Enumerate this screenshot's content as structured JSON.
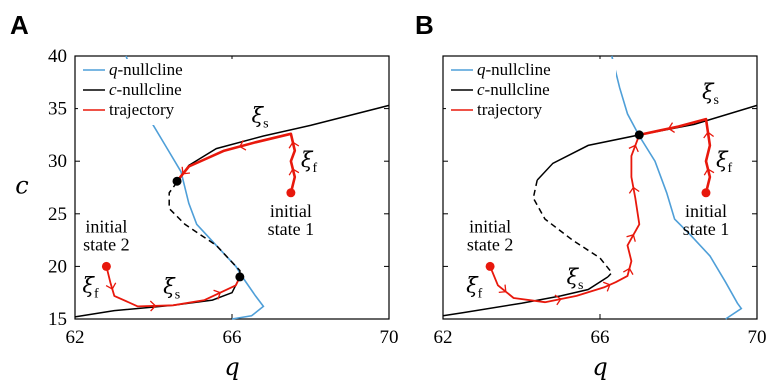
{
  "chart_data": [
    {
      "panel": "A",
      "type": "line",
      "xlabel": "q",
      "ylabel": "c",
      "xlim": [
        62,
        70
      ],
      "ylim": [
        15,
        40
      ],
      "xticks": [
        "62",
        "66",
        "70"
      ],
      "yticks": [
        "15",
        "20",
        "25",
        "30",
        "35",
        "40"
      ],
      "legend": {
        "position": "top-left",
        "entries": [
          {
            "prefix": "q",
            "text": "-nullcline",
            "color": "#4f9fd8"
          },
          {
            "prefix": "c",
            "text": "-nullcline",
            "color": "#000000"
          },
          {
            "prefix": "",
            "text": "trajectory",
            "color": "#e8180c"
          }
        ]
      },
      "q_nullcline": [
        [
          63.3,
          40
        ],
        [
          63.6,
          37
        ],
        [
          63.9,
          34
        ],
        [
          64.3,
          31.5
        ],
        [
          64.7,
          29
        ],
        [
          64.9,
          26
        ],
        [
          65.1,
          24
        ],
        [
          65.6,
          22
        ],
        [
          66.1,
          20
        ],
        [
          66.3,
          18.8
        ],
        [
          66.6,
          17.2
        ],
        [
          66.8,
          16.2
        ],
        [
          66.5,
          15.3
        ],
        [
          66.0,
          15
        ]
      ],
      "c_nullcline_stable_upper": [
        [
          64.6,
          28
        ],
        [
          64.9,
          29.6
        ],
        [
          65.6,
          31.2
        ],
        [
          66.8,
          32.4
        ],
        [
          68,
          33.4
        ],
        [
          70,
          35.3
        ]
      ],
      "c_nullcline_unstable": [
        [
          64.6,
          28
        ],
        [
          64.4,
          27
        ],
        [
          64.4,
          25.5
        ],
        [
          64.8,
          24
        ],
        [
          65.6,
          22
        ],
        [
          66.2,
          19.6
        ],
        [
          66.2,
          19
        ]
      ],
      "c_nullcline_stable_lower": [
        [
          66.2,
          19
        ],
        [
          66,
          17.5
        ],
        [
          65.5,
          16.8
        ],
        [
          64.5,
          16.3
        ],
        [
          63,
          15.8
        ],
        [
          62,
          15.2
        ]
      ],
      "fixed_points": [
        [
          64.6,
          28.1
        ],
        [
          66.2,
          19
        ]
      ],
      "trajectories": [
        {
          "name": "initial state 1",
          "start": [
            67.5,
            27
          ],
          "path": [
            [
              67.5,
              27
            ],
            [
              67.6,
              28.5
            ],
            [
              67.5,
              30
            ],
            [
              67.6,
              31
            ],
            [
              67.5,
              32.6
            ],
            [
              66.6,
              31.8
            ],
            [
              65.8,
              31
            ],
            [
              64.9,
              29.5
            ],
            [
              64.6,
              28.1
            ]
          ]
        },
        {
          "name": "initial state 2",
          "start": [
            62.8,
            20
          ],
          "path": [
            [
              62.8,
              20
            ],
            [
              62.9,
              18.5
            ],
            [
              63,
              17.2
            ],
            [
              63.6,
              16.2
            ],
            [
              64.5,
              16.3
            ],
            [
              65.3,
              16.8
            ],
            [
              66.1,
              18.2
            ],
            [
              66.2,
              19
            ]
          ]
        }
      ],
      "annotations": {
        "initial_state_1": [
          "initial",
          "state 1"
        ],
        "initial_state_2": [
          "initial",
          "state 2"
        ],
        "xi": "ξ",
        "sub_s": "s",
        "sub_f": "f"
      }
    },
    {
      "panel": "B",
      "type": "line",
      "xlabel": "q",
      "ylabel": "",
      "xlim": [
        62,
        70
      ],
      "ylim": [
        15,
        40
      ],
      "xticks": [
        "62",
        "66",
        "70"
      ],
      "yticks": [],
      "legend": {
        "position": "top-left",
        "entries": [
          {
            "prefix": "q",
            "text": "-nullcline",
            "color": "#4f9fd8"
          },
          {
            "prefix": "c",
            "text": "-nullcline",
            "color": "#000000"
          },
          {
            "prefix": "",
            "text": "trajectory",
            "color": "#e8180c"
          }
        ]
      },
      "q_nullcline": [
        [
          66.3,
          40
        ],
        [
          66.5,
          37
        ],
        [
          66.7,
          34.5
        ],
        [
          67.0,
          32.4
        ],
        [
          67.4,
          30
        ],
        [
          67.7,
          27
        ],
        [
          67.9,
          24.5
        ],
        [
          68.3,
          23
        ],
        [
          68.8,
          21
        ],
        [
          69.2,
          18.5
        ],
        [
          69.5,
          16.5
        ],
        [
          69.6,
          16
        ],
        [
          69.2,
          15
        ]
      ],
      "c_nullcline_stable_upper": [
        [
          64.4,
          28.2
        ],
        [
          64.8,
          29.8
        ],
        [
          65.7,
          31.5
        ],
        [
          67,
          32.5
        ],
        [
          68.4,
          33.5
        ],
        [
          70,
          35.3
        ]
      ],
      "c_nullcline_unstable": [
        [
          64.4,
          28.2
        ],
        [
          64.3,
          26.5
        ],
        [
          64.6,
          24.5
        ],
        [
          65.3,
          22.5
        ],
        [
          66,
          20.8
        ],
        [
          66.3,
          19.4
        ],
        [
          66.2,
          19
        ]
      ],
      "c_nullcline_stable_lower": [
        [
          66.2,
          19
        ],
        [
          65.7,
          17.8
        ],
        [
          65,
          17.2
        ],
        [
          64,
          16.5
        ],
        [
          62.5,
          15.6
        ],
        [
          62,
          15.3
        ]
      ],
      "fixed_points": [
        [
          67,
          32.5
        ]
      ],
      "trajectories": [
        {
          "name": "initial state 1",
          "start": [
            68.7,
            27
          ],
          "path": [
            [
              68.7,
              27
            ],
            [
              68.8,
              28.5
            ],
            [
              68.7,
              30
            ],
            [
              68.8,
              31.5
            ],
            [
              68.7,
              34
            ],
            [
              68,
              33.3
            ],
            [
              67.5,
              32.9
            ],
            [
              67,
              32.5
            ]
          ]
        },
        {
          "name": "initial state 2",
          "start": [
            63.2,
            20
          ],
          "path": [
            [
              63.2,
              20
            ],
            [
              63.4,
              18.2
            ],
            [
              63.8,
              17
            ],
            [
              64.6,
              16.6
            ],
            [
              65.4,
              17.2
            ],
            [
              66.1,
              18
            ],
            [
              66.4,
              18.5
            ],
            [
              66.7,
              19.1
            ],
            [
              66.8,
              20.5
            ],
            [
              66.7,
              22
            ],
            [
              67,
              24
            ],
            [
              66.9,
              26.5
            ],
            [
              66.8,
              28.5
            ],
            [
              66.8,
              30.5
            ],
            [
              67,
              32.5
            ]
          ]
        }
      ],
      "annotations": {
        "initial_state_1": [
          "initial",
          "state 1"
        ],
        "initial_state_2": [
          "initial",
          "state 2"
        ],
        "xi": "ξ",
        "sub_s": "s",
        "sub_f": "f"
      }
    }
  ]
}
